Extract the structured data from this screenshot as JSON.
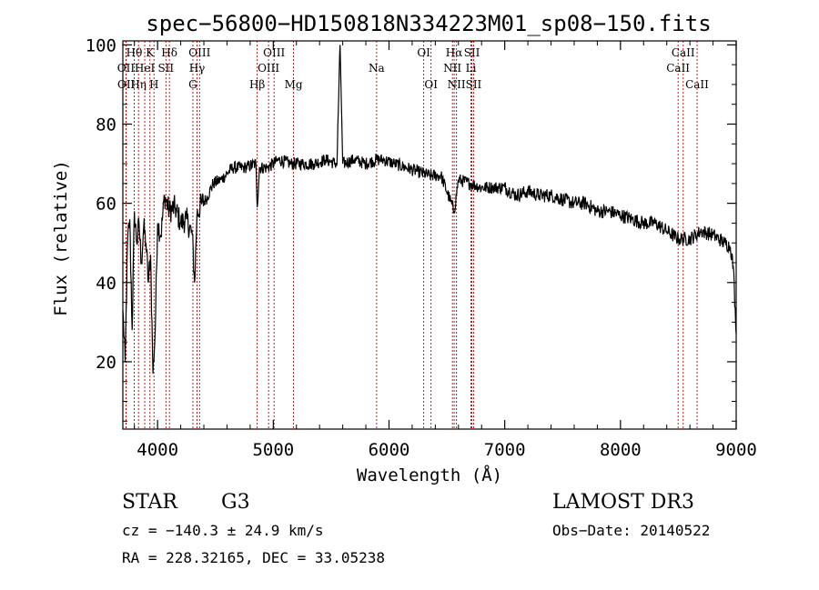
{
  "chart_data": {
    "type": "line",
    "title": "spec−56800−HD150818N334223M01_sp08−150.fits",
    "xlabel": "Wavelength (Å)",
    "ylabel": "Flux (relative)",
    "xlim": [
      3700,
      9000
    ],
    "ylim": [
      3,
      101
    ],
    "x_ticks": [
      4000,
      5000,
      6000,
      7000,
      8000,
      9000
    ],
    "y_ticks": [
      20,
      40,
      60,
      80,
      100
    ],
    "grid": false,
    "series": [
      {
        "color": "#000000",
        "x": [
          3700,
          3720,
          3740,
          3760,
          3780,
          3800,
          3820,
          3840,
          3860,
          3880,
          3900,
          3920,
          3940,
          3960,
          3980,
          4000,
          4030,
          4060,
          4100,
          4150,
          4200,
          4250,
          4300,
          4320,
          4340,
          4380,
          4420,
          4480,
          4550,
          4650,
          4750,
          4850,
          4861,
          4880,
          4950,
          5050,
          5150,
          5250,
          5350,
          5450,
          5550,
          5577,
          5600,
          5700,
          5800,
          5890,
          5950,
          6050,
          6150,
          6250,
          6350,
          6450,
          6563,
          6600,
          6700,
          6800,
          6900,
          7000,
          7100,
          7200,
          7300,
          7400,
          7500,
          7600,
          7700,
          7800,
          7900,
          8000,
          8100,
          8200,
          8300,
          8400,
          8500,
          8600,
          8700,
          8800,
          8900,
          8950,
          8975,
          9000
        ],
        "y": [
          33,
          20,
          50,
          56,
          28,
          58,
          50,
          55,
          45,
          54,
          50,
          40,
          47,
          17,
          28,
          55,
          52,
          62,
          58,
          59,
          55,
          56,
          52,
          40,
          57,
          60,
          61,
          65,
          66,
          69,
          69,
          70,
          59,
          69,
          69,
          71,
          70,
          70,
          70,
          71,
          70,
          100,
          70,
          71,
          70,
          71,
          71,
          70,
          69,
          68,
          67,
          67,
          58,
          66,
          65,
          64,
          64,
          64,
          62,
          63,
          62,
          62,
          61,
          60,
          60,
          58,
          58,
          57,
          56,
          55,
          55,
          53,
          51,
          51,
          53,
          52,
          50,
          49,
          44,
          27
        ]
      }
    ],
    "spectral_lines": [
      {
        "label": "Hθ",
        "wavelength": 3798,
        "row": 1
      },
      {
        "label": "OII",
        "wavelength": 3727,
        "row": 2
      },
      {
        "label": "OII",
        "wavelength": 3729,
        "row": 3
      },
      {
        "label": "HeI",
        "wavelength": 3889,
        "row": 2
      },
      {
        "label": "Hη",
        "wavelength": 3835,
        "row": 3
      },
      {
        "label": "K",
        "wavelength": 3934,
        "row": 1
      },
      {
        "label": "SII",
        "wavelength": 4072,
        "row": 2
      },
      {
        "label": "H",
        "wavelength": 3969,
        "row": 3
      },
      {
        "label": "Hδ",
        "wavelength": 4102,
        "row": 1
      },
      {
        "label": "OIII",
        "wavelength": 4363,
        "row": 1
      },
      {
        "label": "Hγ",
        "wavelength": 4341,
        "row": 2
      },
      {
        "label": "G",
        "wavelength": 4305,
        "row": 3
      },
      {
        "label": "Hβ",
        "wavelength": 4861,
        "row": 3
      },
      {
        "label": "OIII",
        "wavelength": 5007,
        "row": 1
      },
      {
        "label": "OIII",
        "wavelength": 4959,
        "row": 2
      },
      {
        "label": "Mg",
        "wavelength": 5175,
        "row": 3
      },
      {
        "label": "Na",
        "wavelength": 5893,
        "row": 2
      },
      {
        "label": "OI",
        "wavelength": 6300,
        "row": 1
      },
      {
        "label": "OI",
        "wavelength": 6363,
        "row": 3
      },
      {
        "label": "Hα",
        "wavelength": 6563,
        "row": 1
      },
      {
        "label": "SII",
        "wavelength": 6716,
        "row": 1
      },
      {
        "label": "NII",
        "wavelength": 6548,
        "row": 2
      },
      {
        "label": "Li",
        "wavelength": 6708,
        "row": 2
      },
      {
        "label": "NII",
        "wavelength": 6583,
        "row": 3
      },
      {
        "label": "SII",
        "wavelength": 6731,
        "row": 3
      },
      {
        "label": "CaII",
        "wavelength": 8542,
        "row": 1
      },
      {
        "label": "CaII",
        "wavelength": 8498,
        "row": 2
      },
      {
        "label": "CaII",
        "wavelength": 8662,
        "row": 3
      }
    ],
    "line_color": "#c00000"
  },
  "info": {
    "class": "STAR",
    "subclass": "G3",
    "survey": "LAMOST DR3",
    "cz": "cz = −140.3 ± 24.9 km/s",
    "obs_date": "Obs−Date: 20140522",
    "coords": "RA = 228.32165, DEC =  33.05238"
  }
}
